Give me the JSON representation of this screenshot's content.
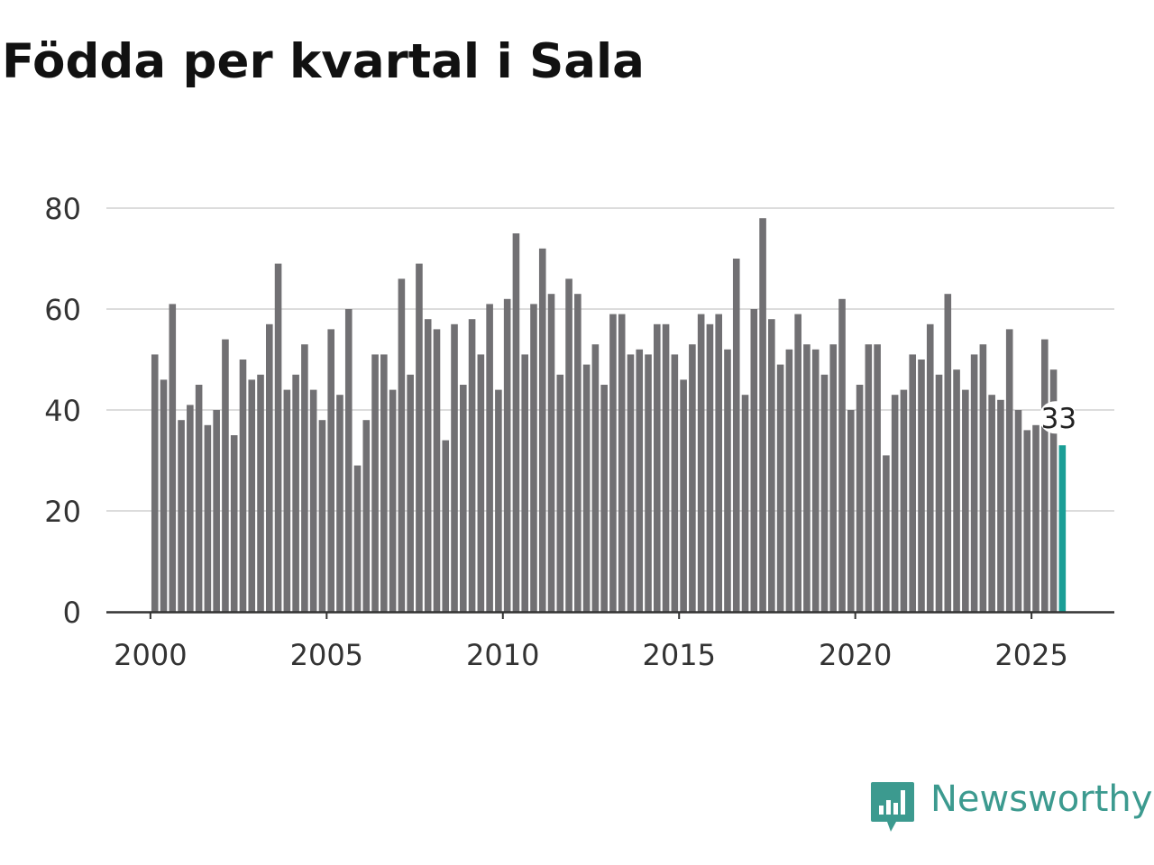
{
  "title": "Födda per kvartal i Sala",
  "brand": {
    "name": "Newsworthy",
    "icon": "newsworthy-logo-icon",
    "color": "#3c9a8f"
  },
  "chart_data": {
    "type": "bar",
    "title": "Födda per kvartal i Sala",
    "xlabel": "",
    "ylabel": "",
    "ylim": [
      0,
      80
    ],
    "yticks": [
      0,
      20,
      40,
      60,
      80
    ],
    "xticks": [
      2000,
      2005,
      2010,
      2015,
      2020,
      2025
    ],
    "x_range": [
      1998.75,
      2027.35
    ],
    "grid": true,
    "bar_color": "#717073",
    "highlight_color": "#1a9e96",
    "highlight_label": "33",
    "start_year": 2000,
    "quarters_per_year": 4,
    "values": [
      51,
      46,
      61,
      38,
      41,
      45,
      37,
      40,
      54,
      35,
      50,
      46,
      47,
      57,
      69,
      44,
      47,
      53,
      44,
      38,
      56,
      43,
      60,
      29,
      38,
      51,
      51,
      44,
      66,
      47,
      69,
      58,
      56,
      34,
      57,
      45,
      58,
      51,
      61,
      44,
      62,
      75,
      51,
      61,
      72,
      63,
      47,
      66,
      63,
      49,
      53,
      45,
      59,
      59,
      51,
      52,
      51,
      57,
      57,
      51,
      46,
      53,
      59,
      57,
      59,
      52,
      70,
      43,
      60,
      78,
      58,
      49,
      52,
      59,
      53,
      52,
      47,
      53,
      62,
      40,
      45,
      53,
      53,
      31,
      43,
      44,
      51,
      50,
      57,
      47,
      63,
      48,
      44,
      51,
      53,
      43,
      42,
      56,
      40,
      36,
      37,
      54,
      48,
      33
    ]
  }
}
